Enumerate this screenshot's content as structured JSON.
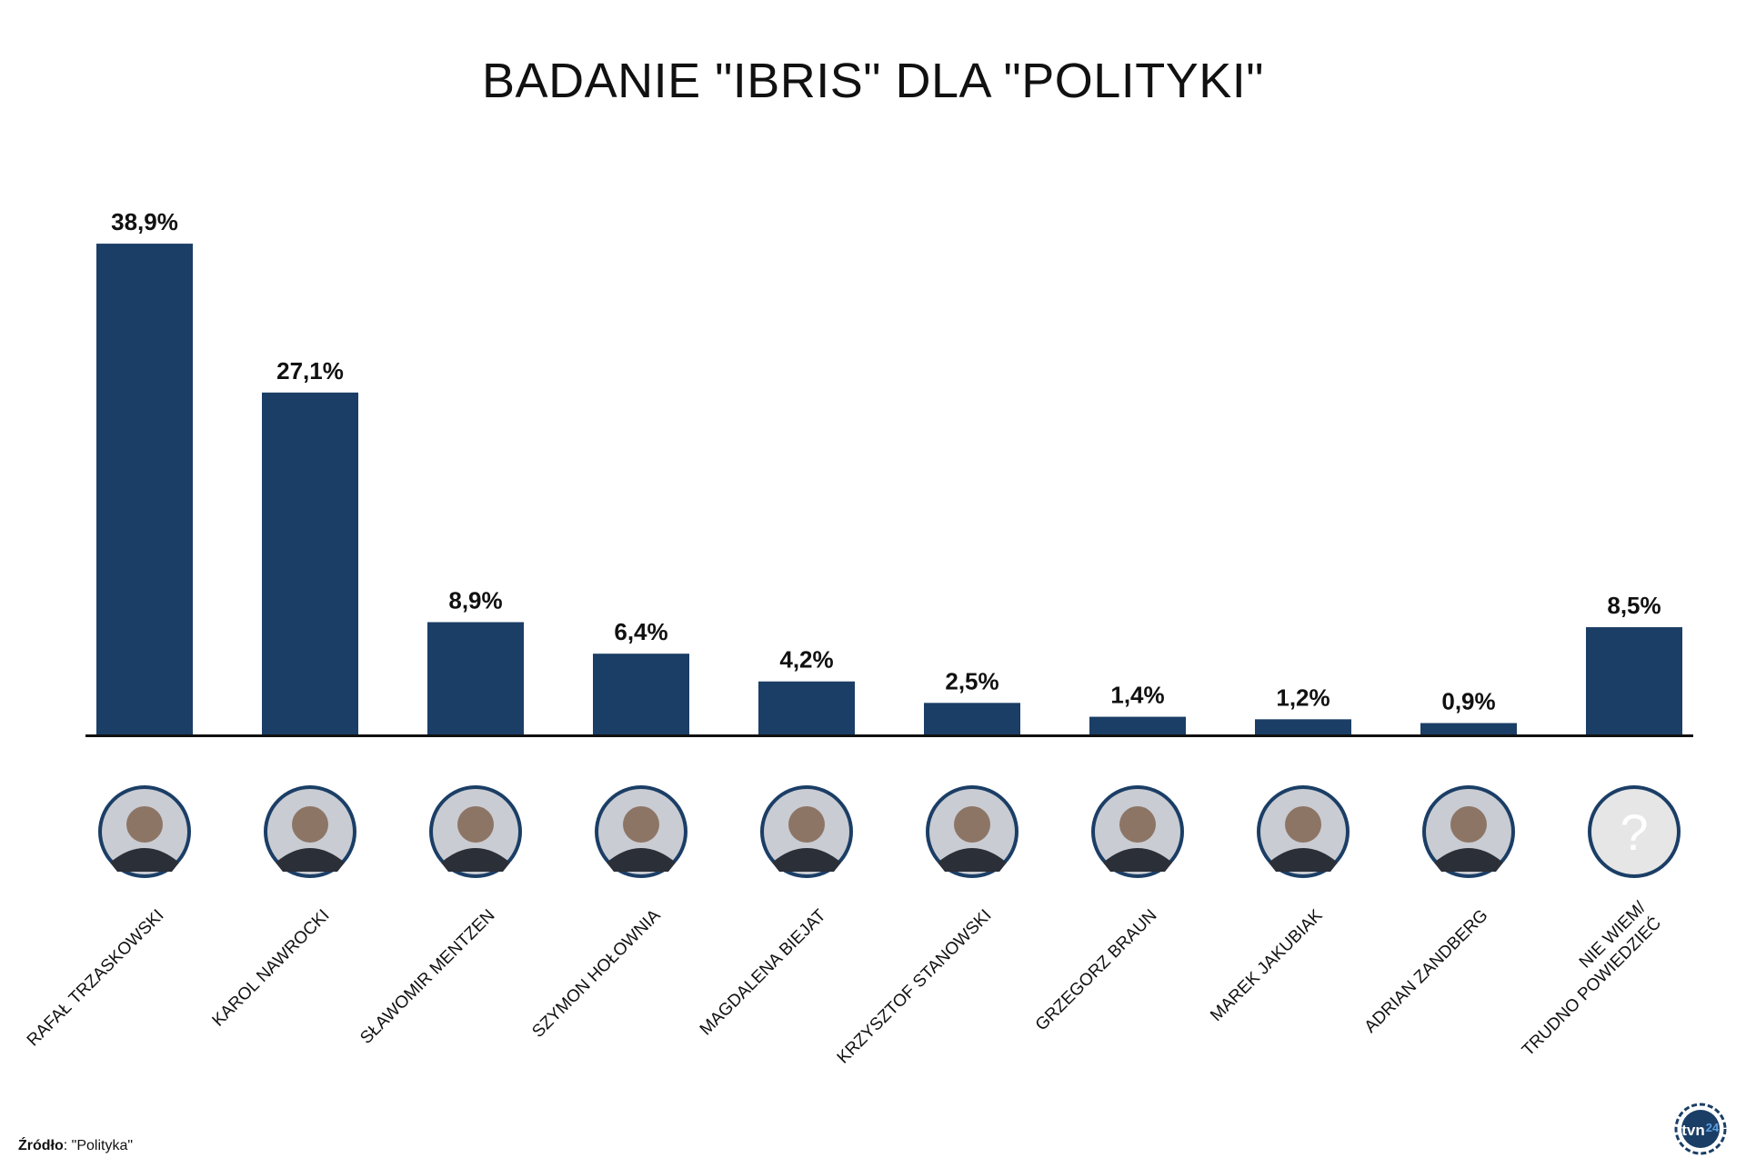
{
  "title": "BADANIE \"IBRIS\" DLA \"POLITYKI\"",
  "source": {
    "label": "Źródło",
    "value": ": \"Polityka\""
  },
  "logo": {
    "text": "tvn",
    "suffix": "24",
    "icon": "tvn24-logo-icon"
  },
  "colors": {
    "bar": "#1b3e66",
    "axis": "#111111",
    "avatar_ring": "#1b3e66",
    "unknown_fill": "#e6e6e6"
  },
  "chart_data": {
    "type": "bar",
    "title": "BADANIE \"IBRIS\" DLA \"POLITYKI\"",
    "categories": [
      "RAFAŁ TRZASKOWSKI",
      "KAROL NAWROCKI",
      "SŁAWOMIR MENTZEN",
      "SZYMON HOŁOWNIA",
      "MAGDALENA BIEJAT",
      "KRZYSZTOF STANOWSKI",
      "GRZEGORZ BRAUN",
      "MAREK JAKUBIAK",
      "ADRIAN ZANDBERG",
      "NIE WIEM/\nTRUDNO POWIEDZIEĆ"
    ],
    "values": [
      38.9,
      27.1,
      8.9,
      6.4,
      4.2,
      2.5,
      1.4,
      1.2,
      0.9,
      8.5
    ],
    "value_labels": [
      "38,9%",
      "27,1%",
      "8,9%",
      "6,4%",
      "4,2%",
      "2,5%",
      "1,4%",
      "1,2%",
      "0,9%",
      "8,5%"
    ],
    "ylim": [
      0,
      40
    ],
    "grid": false,
    "legend": "none"
  },
  "avatars": [
    "portrait-icon",
    "portrait-icon",
    "portrait-icon",
    "portrait-icon",
    "portrait-icon",
    "portrait-icon",
    "portrait-icon",
    "portrait-icon",
    "portrait-icon",
    "question-mark-icon"
  ],
  "unknown_glyph": "?"
}
